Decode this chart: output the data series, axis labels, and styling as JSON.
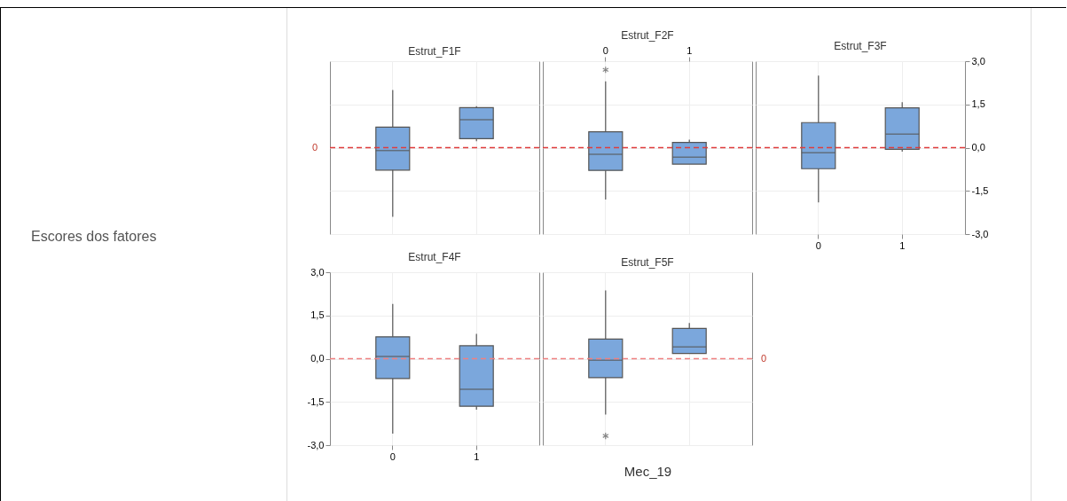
{
  "chart_data": [
    {
      "type": "box",
      "title": "Estrut_F1F",
      "ylabel": "Escores dos fatores",
      "categories": [
        "0",
        "1"
      ],
      "ylim": [
        -3,
        3
      ],
      "yticks": [
        {
          "value": 3,
          "label": null
        },
        {
          "value": 1.5,
          "label": null
        },
        {
          "value": 0,
          "label": null
        },
        {
          "value": -1.5,
          "label": null
        },
        {
          "value": -3,
          "label": null
        }
      ],
      "grid": true,
      "tick_labels": false,
      "color": "#7ba7dc",
      "boxes": [
        {
          "low": -2.4,
          "q1": -0.78,
          "median": -0.1,
          "q3": 0.71,
          "high": 2.0
        },
        {
          "low": 0.22,
          "q1": 0.31,
          "median": 0.97,
          "q3": 1.39,
          "high": 1.44
        }
      ],
      "ref_lines": [
        {
          "axis": "y",
          "value": 0,
          "label": "0",
          "color": "#e03c3c",
          "line_style": "dashed"
        }
      ]
    },
    {
      "type": "box",
      "title": "Estrut_F2F",
      "categories": [
        "0",
        "1"
      ],
      "ylim": [
        -3,
        3
      ],
      "yticks": [
        {
          "value": 3,
          "label": null
        },
        {
          "value": 1.5,
          "label": null
        },
        {
          "value": 0,
          "label": null
        },
        {
          "value": -1.5,
          "label": null
        },
        {
          "value": -3,
          "label": null
        }
      ],
      "grid": true,
      "tick_labels": "x",
      "color": "#7ba7dc",
      "boxes": [
        {
          "low": -1.8,
          "q1": -0.79,
          "median": -0.23,
          "q3": 0.55,
          "high": 2.3,
          "outliers": [
            2.7
          ]
        },
        {
          "low": -0.57,
          "q1": -0.57,
          "median": -0.33,
          "q3": 0.18,
          "high": 0.28
        }
      ],
      "ref_lines": [
        {
          "axis": "y",
          "value": 0,
          "color": "#e03c3c",
          "line_style": "dashed"
        }
      ]
    },
    {
      "type": "box",
      "title": "Estrut_F3F",
      "categories": [
        "0",
        "1"
      ],
      "ylim": [
        -3,
        3
      ],
      "yticks": [
        {
          "value": 3,
          "label": "3,0"
        },
        {
          "value": 1.5,
          "label": "1,5"
        },
        {
          "value": 0,
          "label": "0,0"
        },
        {
          "value": -1.5,
          "label": "-1,5"
        },
        {
          "value": -3,
          "label": "-3,0"
        }
      ],
      "grid": true,
      "color": "#7ba7dc",
      "boxes": [
        {
          "low": -1.9,
          "q1": -0.73,
          "median": -0.18,
          "q3": 0.87,
          "high": 2.5
        },
        {
          "low": -0.14,
          "q1": -0.06,
          "median": 0.47,
          "q3": 1.38,
          "high": 1.58
        }
      ],
      "ref_lines": [
        {
          "axis": "y",
          "value": 0,
          "color": "#e03c3c",
          "line_style": "dashed"
        }
      ]
    },
    {
      "type": "box",
      "title": "Estrut_F4F",
      "categories": [
        "0",
        "1"
      ],
      "ylim": [
        -3,
        3
      ],
      "yticks": [
        {
          "value": 3,
          "label": "3,0"
        },
        {
          "value": 1.5,
          "label": "1,5"
        },
        {
          "value": 0,
          "label": "0,0"
        },
        {
          "value": -1.5,
          "label": "-1,5"
        },
        {
          "value": -3,
          "label": "-3,0"
        }
      ],
      "grid": true,
      "color": "#7ba7dc",
      "boxes": [
        {
          "low": -2.6,
          "q1": -0.69,
          "median": 0.08,
          "q3": 0.76,
          "high": 1.9
        },
        {
          "low": -1.77,
          "q1": -1.65,
          "median": -1.06,
          "q3": 0.45,
          "high": 0.86
        }
      ],
      "ref_lines": [
        {
          "axis": "y",
          "value": 0,
          "color": "#f08080",
          "line_style": "dashed"
        }
      ]
    },
    {
      "type": "box",
      "title": "Estrut_F5F",
      "xlabel": "Mec_19",
      "categories": [
        "0",
        "1"
      ],
      "ylim": [
        -3,
        3
      ],
      "yticks": [
        {
          "value": 3,
          "label": null
        },
        {
          "value": 1.5,
          "label": null
        },
        {
          "value": 0,
          "label": null
        },
        {
          "value": -1.5,
          "label": null
        },
        {
          "value": -3,
          "label": null
        }
      ],
      "grid": true,
      "tick_labels": false,
      "color": "#7ba7dc",
      "boxes": [
        {
          "low": -1.94,
          "q1": -0.66,
          "median": -0.05,
          "q3": 0.68,
          "high": 2.37,
          "outliers": [
            -2.68
          ]
        },
        {
          "low": 0.18,
          "q1": 0.18,
          "median": 0.41,
          "q3": 1.05,
          "high": 1.24
        }
      ],
      "ref_lines": [
        {
          "axis": "y",
          "value": 0,
          "label": "0",
          "color": "#f08080",
          "line_style": "dashed"
        }
      ]
    }
  ]
}
